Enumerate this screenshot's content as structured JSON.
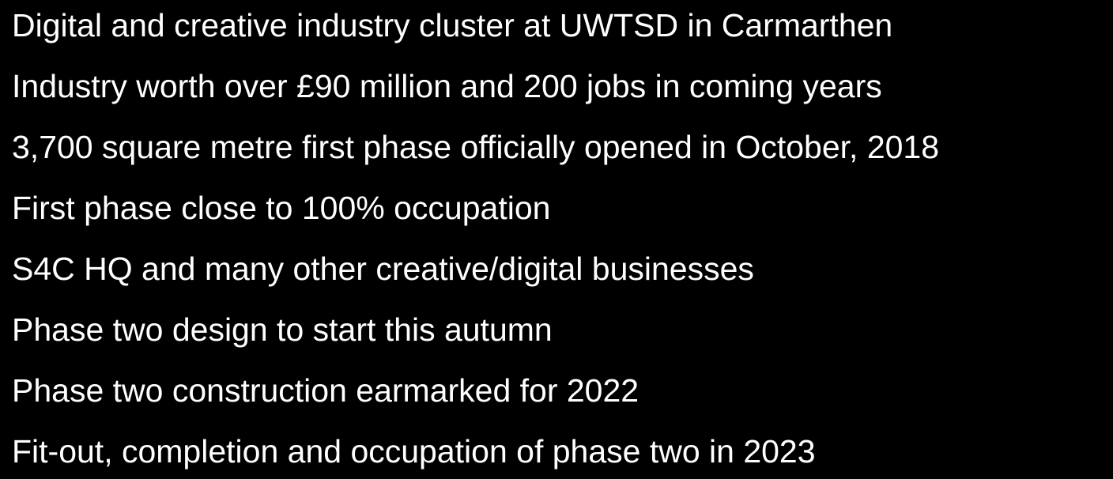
{
  "bullets": [
    "Digital and creative industry cluster at UWTSD in Carmarthen",
    "Industry worth over £90 million and 200 jobs in coming years",
    "3,700 square metre first phase officially opened in October, 2018",
    "First phase close to 100% occupation",
    "S4C HQ and many other creative/digital businesses",
    "Phase two design to start this autumn",
    "Phase two construction earmarked for 2022",
    "Fit-out, completion and occupation of phase two in 2023"
  ]
}
